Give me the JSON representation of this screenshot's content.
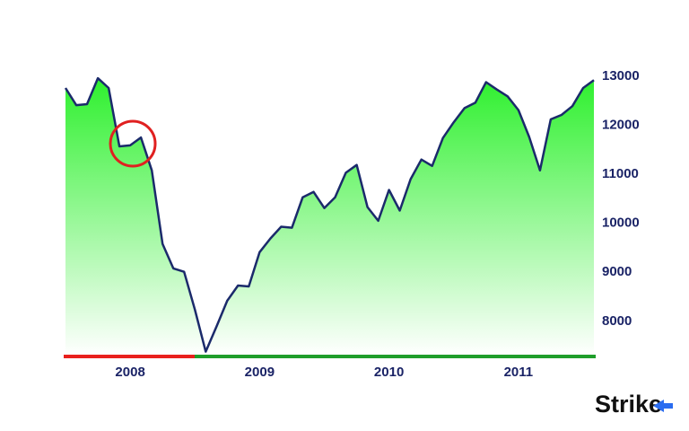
{
  "chart_data": {
    "type": "area",
    "categories": [
      null,
      null,
      null,
      null,
      null,
      null,
      "2008",
      null,
      null,
      null,
      null,
      null,
      null,
      null,
      null,
      null,
      null,
      null,
      "2009",
      null,
      null,
      null,
      null,
      null,
      null,
      null,
      null,
      null,
      null,
      null,
      "2010",
      null,
      null,
      null,
      null,
      null,
      null,
      null,
      null,
      null,
      null,
      null,
      "2011",
      null,
      null,
      null,
      null,
      null,
      null,
      null
    ],
    "values": [
      12760,
      12410,
      12430,
      12960,
      12760,
      11570,
      11590,
      11750,
      11080,
      9580,
      9080,
      9010,
      8240,
      7380,
      7890,
      8420,
      8730,
      8710,
      9410,
      9690,
      9930,
      9910,
      10530,
      10640,
      10310,
      10530,
      11030,
      11190,
      10330,
      10050,
      10680,
      10260,
      10900,
      11300,
      11170,
      11740,
      12060,
      12350,
      12460,
      12880,
      12730,
      12590,
      12310,
      11760,
      11080,
      12120,
      12210,
      12390,
      12760,
      12920
    ],
    "color": "#1b2a6b",
    "fill_color": "#2ef02e",
    "ylim": [
      7300,
      13200
    ],
    "yticks": [
      8000,
      9000,
      10000,
      11000,
      12000,
      13000
    ],
    "grid": false
  },
  "logo": "Strike"
}
